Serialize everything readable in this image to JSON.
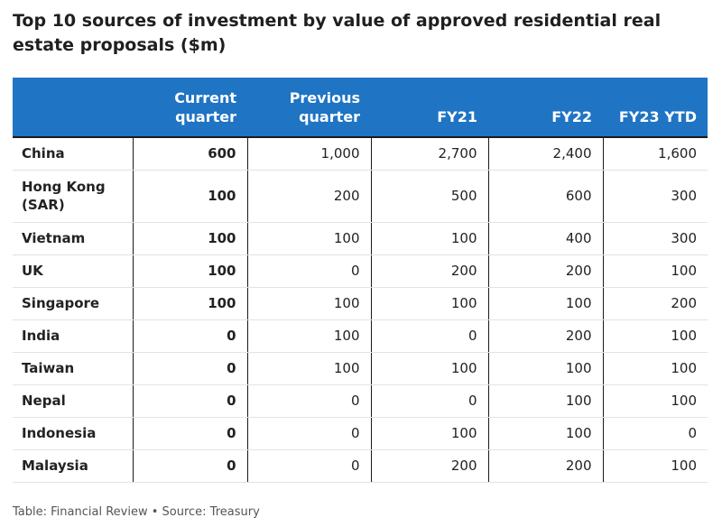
{
  "title": "Top 10 sources of investment by value of approved residential real estate proposals ($m)",
  "footer": "Table: Financial Review • Source: Treasury",
  "colors": {
    "header_bg": "#1f74c4",
    "header_text": "#ffffff"
  },
  "chart_data": {
    "type": "table",
    "title": "Top 10 sources of investment by value of approved residential real estate proposals ($m)",
    "columns": [
      "",
      "Current quarter",
      "Previous quarter",
      "FY21",
      "FY22",
      "FY23 YTD"
    ],
    "rows": [
      {
        "source": "China",
        "values": [
          "600",
          "1,000",
          "2,700",
          "2,400",
          "1,600"
        ]
      },
      {
        "source": "Hong Kong (SAR)",
        "values": [
          "100",
          "200",
          "500",
          "600",
          "300"
        ]
      },
      {
        "source": "Vietnam",
        "values": [
          "100",
          "100",
          "100",
          "400",
          "300"
        ]
      },
      {
        "source": "UK",
        "values": [
          "100",
          "0",
          "200",
          "200",
          "100"
        ]
      },
      {
        "source": "Singapore",
        "values": [
          "100",
          "100",
          "100",
          "100",
          "200"
        ]
      },
      {
        "source": "India",
        "values": [
          "0",
          "100",
          "0",
          "200",
          "100"
        ]
      },
      {
        "source": "Taiwan",
        "values": [
          "0",
          "100",
          "100",
          "100",
          "100"
        ]
      },
      {
        "source": "Nepal",
        "values": [
          "0",
          "0",
          "0",
          "100",
          "100"
        ]
      },
      {
        "source": "Indonesia",
        "values": [
          "0",
          "0",
          "100",
          "100",
          "0"
        ]
      },
      {
        "source": "Malaysia",
        "values": [
          "0",
          "0",
          "200",
          "200",
          "100"
        ]
      }
    ]
  }
}
